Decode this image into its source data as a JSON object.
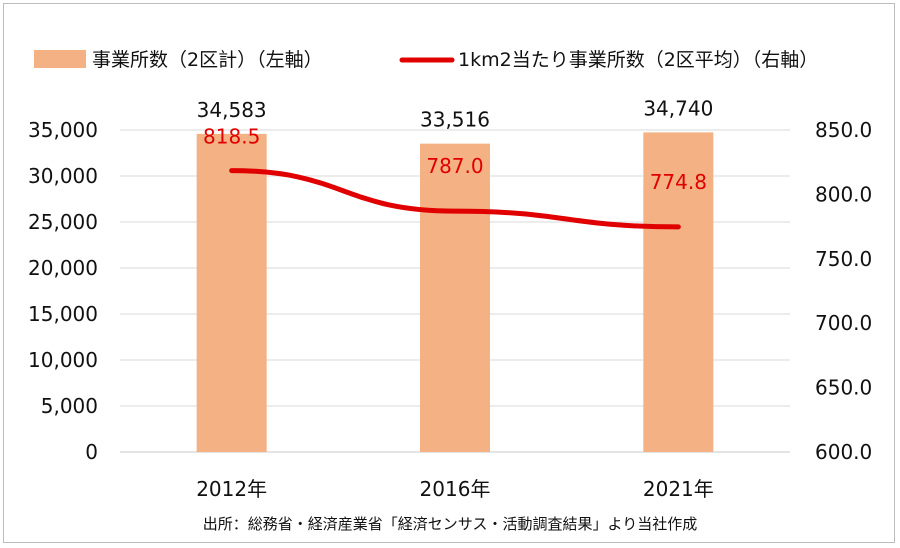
{
  "chart_data": {
    "type": "bar",
    "categories": [
      "2012年",
      "2016年",
      "2021年"
    ],
    "series": [
      {
        "name": "事業所数（2区計）（左軸）",
        "type": "bar",
        "axis": "left",
        "color": "#f4b183",
        "values": [
          34583,
          33516,
          34740
        ],
        "labels": [
          "34,583",
          "33,516",
          "34,740"
        ]
      },
      {
        "name": "1km2当たり事業所数（2区平均）（右軸）",
        "type": "line",
        "axis": "right",
        "color": "#e00000",
        "values": [
          818.5,
          787.0,
          774.8
        ],
        "labels": [
          "818.5",
          "787.0",
          "774.8"
        ]
      }
    ],
    "y_left": {
      "min": 0,
      "max": 35000,
      "ticks": [
        "0",
        "5,000",
        "10,000",
        "15,000",
        "20,000",
        "25,000",
        "30,000",
        "35,000"
      ]
    },
    "y_right": {
      "min": 600,
      "max": 850,
      "ticks": [
        "600.0",
        "650.0",
        "700.0",
        "750.0",
        "800.0",
        "850.0"
      ]
    },
    "grid": true,
    "legend_position": "top"
  },
  "source": "出所：総務省・経済産業省「経済センサス・活動調査結果」より当社作成"
}
